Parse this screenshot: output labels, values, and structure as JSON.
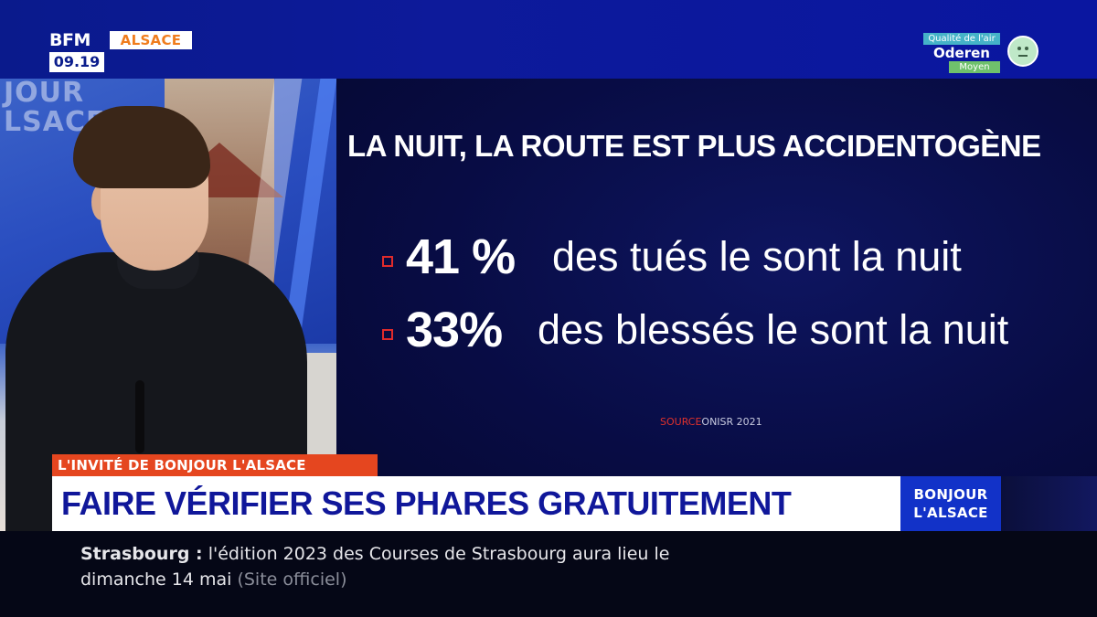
{
  "channel": {
    "brand": "BFM",
    "region": "ALSACE",
    "time": "09.19"
  },
  "air_quality": {
    "title": "Qualité de l'air",
    "city": "Oderen",
    "level": "Moyen",
    "icon": "neutral-face-icon"
  },
  "studio_backdrop": {
    "line1": "JOUR",
    "line2": "LSACE"
  },
  "infographic": {
    "title": "LA NUIT, LA ROUTE EST PLUS ACCIDENTOGÈNE",
    "stats": [
      {
        "value": "41 %",
        "text": "des tués le sont la nuit"
      },
      {
        "value": "33%",
        "text": "des blessés le sont la nuit"
      }
    ],
    "source_label": "SOURCE",
    "source_value": "ONISR 2021"
  },
  "lower_third": {
    "kicker": "L'INVITÉ DE BONJOUR L'ALSACE",
    "headline": "FAIRE VÉRIFIER SES PHARES GRATUITEMENT",
    "show_line1": "BONJOUR",
    "show_line2": "L'ALSACE"
  },
  "ticker": {
    "city": "Strasbourg :",
    "line1_text": "l'édition 2023 des Courses de Strasbourg aura lieu le",
    "line2_text": "dimanche 14 mai",
    "source": "(Site officiel)"
  },
  "colors": {
    "brand_blue": "#0a1a8c",
    "accent_orange": "#e5461f",
    "headline_blue": "#10179a",
    "bullet_red": "#e02b2b"
  }
}
